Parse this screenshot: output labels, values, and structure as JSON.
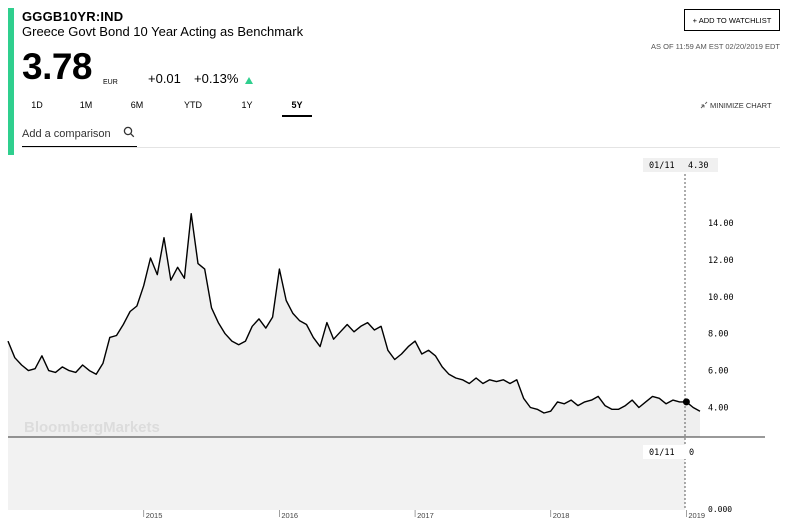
{
  "header": {
    "ticker": "GGGB10YR:IND",
    "name": "Greece Govt Bond 10 Year Acting as Benchmark",
    "watchlist_label": "+ ADD TO WATCHLIST",
    "as_of": "AS OF 11:59 AM EST 02/20/2019 EDT",
    "price": "3.78",
    "currency": "EUR",
    "change": "+0.01",
    "change_pct": "+0.13%",
    "accent_color": "#2fcf8e"
  },
  "tabs": [
    {
      "label": "1D",
      "active": false
    },
    {
      "label": "1M",
      "active": false
    },
    {
      "label": "6M",
      "active": false
    },
    {
      "label": "YTD",
      "active": false
    },
    {
      "label": "1Y",
      "active": false
    },
    {
      "label": "5Y",
      "active": true
    }
  ],
  "minimize_label": "MINIMIZE CHART",
  "compare": {
    "placeholder": "Add a comparison"
  },
  "watermark": "BloombergMarkets",
  "chart_data": {
    "type": "area",
    "x_ticks": [
      "2015",
      "2016",
      "2017",
      "2018",
      "2019"
    ],
    "y_ticks": [
      "14.00",
      "12.00",
      "10.00",
      "8.00",
      "6.00",
      "4.00"
    ],
    "ylim": [
      2.4,
      16.6
    ],
    "crosshair_date": "01/11",
    "crosshair_top_value": "4.30",
    "crosshair_bottom_value": "0",
    "volume_axis_label": "0.000",
    "series": [
      {
        "x": [
          2014.0,
          2014.05,
          2014.1,
          2014.15,
          2014.2,
          2014.25,
          2014.3,
          2014.35,
          2014.4,
          2014.45,
          2014.5,
          2014.55,
          2014.6,
          2014.65,
          2014.7,
          2014.75,
          2014.8,
          2014.85,
          2014.9,
          2014.95,
          2015.0,
          2015.05,
          2015.1,
          2015.15,
          2015.2,
          2015.25,
          2015.3,
          2015.35,
          2015.4,
          2015.45,
          2015.5,
          2015.55,
          2015.6,
          2015.65,
          2015.7,
          2015.75,
          2015.8,
          2015.85,
          2015.9,
          2015.95,
          2016.0,
          2016.05,
          2016.1,
          2016.15,
          2016.2,
          2016.25,
          2016.3,
          2016.35,
          2016.4,
          2016.45,
          2016.5,
          2016.55,
          2016.6,
          2016.65,
          2016.7,
          2016.75,
          2016.8,
          2016.85,
          2016.9,
          2016.95,
          2017.0,
          2017.05,
          2017.1,
          2017.15,
          2017.2,
          2017.25,
          2017.3,
          2017.35,
          2017.4,
          2017.45,
          2017.5,
          2017.55,
          2017.6,
          2017.65,
          2017.7,
          2017.75,
          2017.8,
          2017.85,
          2017.9,
          2017.95,
          2018.0,
          2018.05,
          2018.1,
          2018.15,
          2018.2,
          2018.25,
          2018.3,
          2018.35,
          2018.4,
          2018.45,
          2018.5,
          2018.55,
          2018.6,
          2018.65,
          2018.7,
          2018.75,
          2018.8,
          2018.85,
          2018.9,
          2018.95,
          2019.0,
          2019.05,
          2019.1
        ],
        "y": [
          7.6,
          6.7,
          6.3,
          6.0,
          6.1,
          6.8,
          6.0,
          5.9,
          6.2,
          6.0,
          5.9,
          6.3,
          6.0,
          5.8,
          6.4,
          7.8,
          7.9,
          8.5,
          9.2,
          9.5,
          10.6,
          12.1,
          11.2,
          13.2,
          10.9,
          11.6,
          11.0,
          14.5,
          11.8,
          11.5,
          9.4,
          8.6,
          8.0,
          7.6,
          7.4,
          7.6,
          8.4,
          8.8,
          8.3,
          8.9,
          11.5,
          9.8,
          9.1,
          8.7,
          8.5,
          7.8,
          7.3,
          8.6,
          7.7,
          8.1,
          8.5,
          8.1,
          8.4,
          8.6,
          8.2,
          8.4,
          7.1,
          6.6,
          6.9,
          7.3,
          7.6,
          6.9,
          7.1,
          6.8,
          6.2,
          5.8,
          5.6,
          5.5,
          5.3,
          5.6,
          5.3,
          5.5,
          5.4,
          5.5,
          5.3,
          5.5,
          4.5,
          4.0,
          3.9,
          3.7,
          3.8,
          4.3,
          4.2,
          4.4,
          4.1,
          4.3,
          4.4,
          4.6,
          4.1,
          3.9,
          3.9,
          4.1,
          4.4,
          4.0,
          4.3,
          4.6,
          4.5,
          4.2,
          4.4,
          4.3,
          4.3,
          4.0,
          3.8
        ]
      }
    ]
  }
}
